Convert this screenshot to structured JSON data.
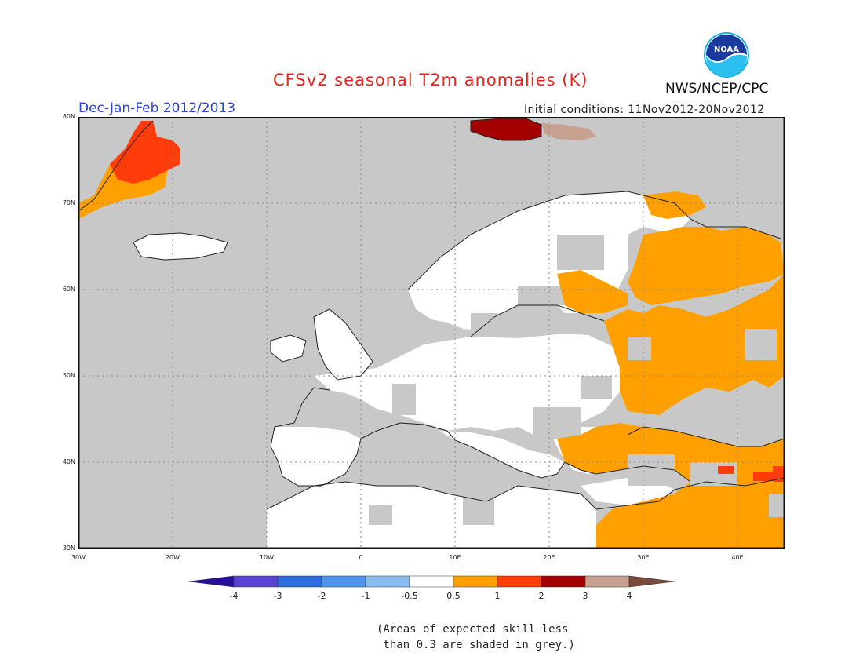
{
  "title": "CFSv2 seasonal T2m anomalies (K)",
  "period": "Dec-Jan-Feb 2012/2013",
  "initial_conditions": "Initial conditions: 11Nov2012-20Nov2012",
  "agency": "NWS/NCEP/CPC",
  "logo": {
    "icon": "noaa-logo",
    "text": "NOAA"
  },
  "map": {
    "lat_labels": [
      "80N",
      "70N",
      "60N",
      "50N",
      "40N",
      "30N"
    ],
    "lon_labels": [
      "30W",
      "20W",
      "10W",
      "0",
      "10E",
      "20E",
      "30E",
      "40E"
    ],
    "lat_range": [
      30,
      80
    ],
    "lon_range": [
      -30,
      45
    ],
    "grid": "dotted"
  },
  "colorbar": {
    "labels": [
      "-4",
      "-3",
      "-2",
      "-1",
      "-0.5",
      "0.5",
      "1",
      "2",
      "3",
      "4"
    ],
    "colors": [
      "#2a0f9a",
      "#5a43d4",
      "#2e6ee0",
      "#4d96ec",
      "#87bdf2",
      "#ffffff",
      "#ffa000",
      "#ff3c0a",
      "#a40000",
      "#c8a090",
      "#7a4a3a"
    ]
  },
  "colors": {
    "skill_grey": "#c8c8c8",
    "neutral_white": "#ffffff",
    "warm_1": "#ffa000",
    "warm_2": "#ff3c0a",
    "warm_3": "#a40000",
    "warm_4": "#c8a090"
  },
  "note": "(Areas of expected skill less\n than 0.3 are shaded in grey.)"
}
